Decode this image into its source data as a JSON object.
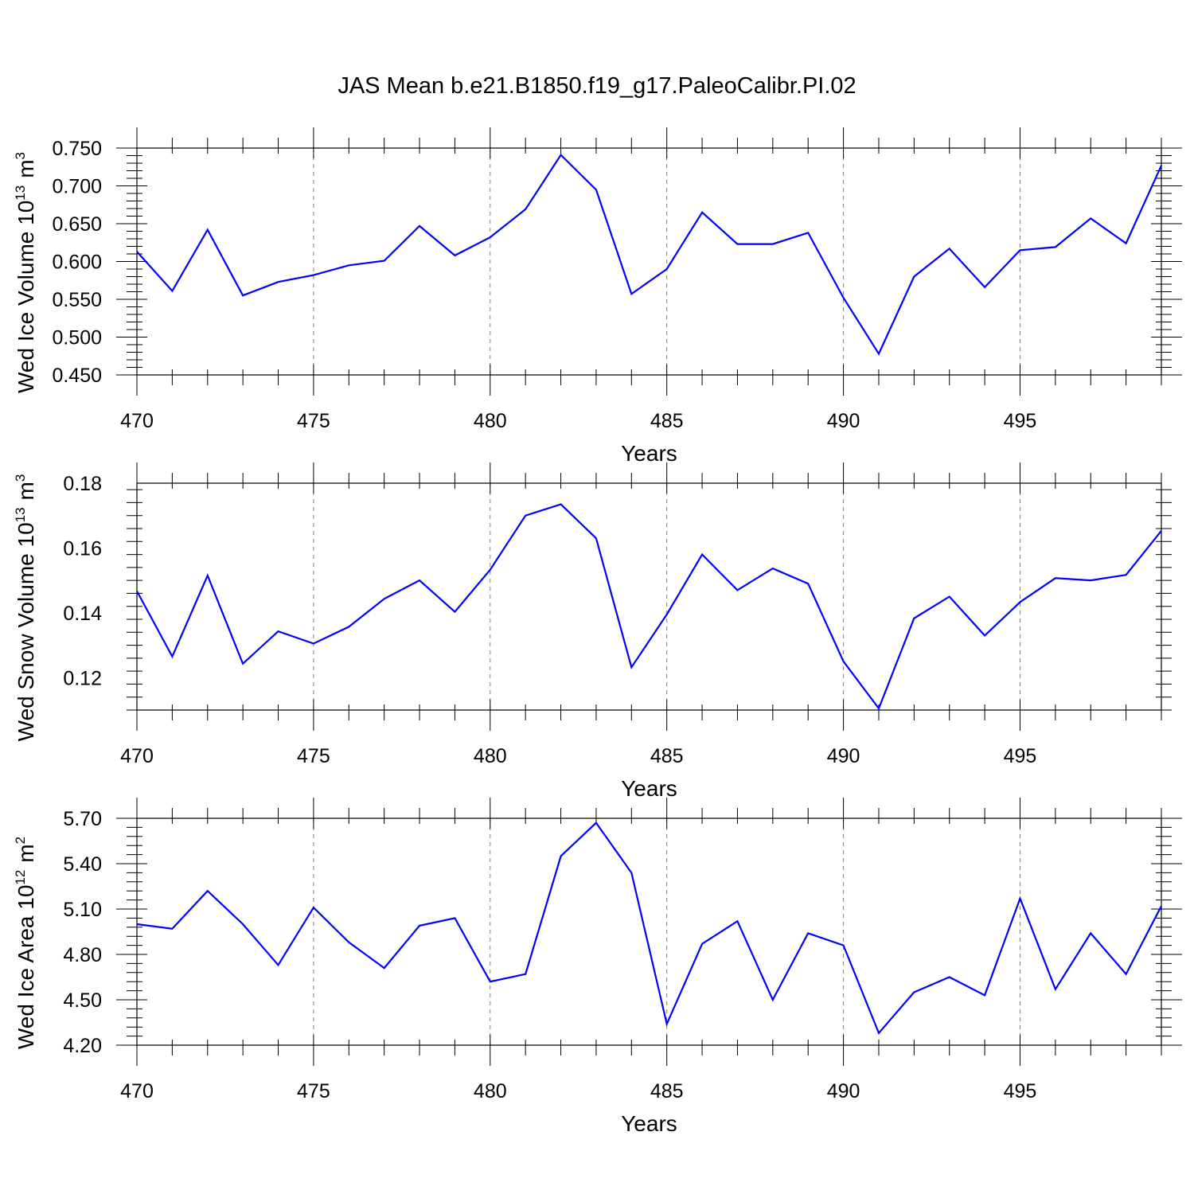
{
  "title": "JAS Mean b.e21.B1850.f19_g17.PaleoCalibr.PI.02",
  "colors": {
    "series": "#0000ff",
    "axis": "#000000",
    "grid": "#808080"
  },
  "chart_data": [
    {
      "type": "line",
      "id": "ice-volume",
      "ylabel_main": "Wed Ice Volume 10",
      "ylabel_exp": "13",
      "ylabel_unit": "m",
      "ylabel_unit_exp": "3",
      "xlabel": "Years",
      "xlim": [
        470,
        499
      ],
      "ylim": [
        0.45,
        0.75
      ],
      "xticks": [
        470,
        475,
        480,
        485,
        490,
        495
      ],
      "yticks": [
        "0.450",
        "0.500",
        "0.550",
        "0.600",
        "0.650",
        "0.700",
        "0.750"
      ],
      "grid": "dashed vertical at major x ticks",
      "series": [
        {
          "name": "Wed Ice Volume",
          "x": [
            470,
            471,
            472,
            473,
            474,
            475,
            476,
            477,
            478,
            479,
            480,
            481,
            482,
            483,
            484,
            485,
            486,
            487,
            488,
            489,
            490,
            491,
            492,
            493,
            494,
            495,
            496,
            497,
            498,
            499
          ],
          "values": [
            0.613,
            0.561,
            0.642,
            0.555,
            0.573,
            0.582,
            0.595,
            0.601,
            0.647,
            0.608,
            0.632,
            0.669,
            0.741,
            0.695,
            0.557,
            0.59,
            0.665,
            0.623,
            0.623,
            0.638,
            0.552,
            0.478,
            0.58,
            0.617,
            0.566,
            0.615,
            0.619,
            0.657,
            0.624,
            0.727
          ]
        }
      ]
    },
    {
      "type": "line",
      "id": "snow-volume",
      "ylabel_main": "Wed Snow Volume 10",
      "ylabel_exp": "13",
      "ylabel_unit": "m",
      "ylabel_unit_exp": "3",
      "xlabel": "Years",
      "xlim": [
        470,
        499
      ],
      "ylim": [
        0.11,
        0.18
      ],
      "xticks": [
        470,
        475,
        480,
        485,
        490,
        495
      ],
      "yticks": [
        "0.12",
        "0.14",
        "0.16",
        "0.18"
      ],
      "grid": "dashed vertical at major x ticks",
      "series": [
        {
          "name": "Wed Snow Volume",
          "x": [
            470,
            471,
            472,
            473,
            474,
            475,
            476,
            477,
            478,
            479,
            480,
            481,
            482,
            483,
            484,
            485,
            486,
            487,
            488,
            489,
            490,
            491,
            492,
            493,
            494,
            495,
            496,
            497,
            498,
            499
          ],
          "values": [
            0.1467,
            0.1265,
            0.1515,
            0.1243,
            0.1343,
            0.1305,
            0.1357,
            0.1443,
            0.15,
            0.1403,
            0.1533,
            0.17,
            0.1735,
            0.163,
            0.1232,
            0.1395,
            0.158,
            0.147,
            0.1537,
            0.149,
            0.125,
            0.1105,
            0.1383,
            0.145,
            0.133,
            0.1433,
            0.1507,
            0.15,
            0.1517,
            0.1653
          ]
        }
      ]
    },
    {
      "type": "line",
      "id": "ice-area",
      "ylabel_main": "Wed Ice Area 10",
      "ylabel_exp": "12",
      "ylabel_unit": "m",
      "ylabel_unit_exp": "2",
      "xlabel": "Years",
      "xlim": [
        470,
        499
      ],
      "ylim": [
        4.2,
        5.7
      ],
      "xticks": [
        470,
        475,
        480,
        485,
        490,
        495
      ],
      "yticks": [
        "4.20",
        "4.50",
        "4.80",
        "5.10",
        "5.40",
        "5.70"
      ],
      "grid": "dashed vertical at major x ticks",
      "series": [
        {
          "name": "Wed Ice Area",
          "x": [
            470,
            471,
            472,
            473,
            474,
            475,
            476,
            477,
            478,
            479,
            480,
            481,
            482,
            483,
            484,
            485,
            486,
            487,
            488,
            489,
            490,
            491,
            492,
            493,
            494,
            495,
            496,
            497,
            498,
            499
          ],
          "values": [
            5.0,
            4.97,
            5.22,
            5.0,
            4.73,
            5.11,
            4.88,
            4.71,
            4.99,
            5.04,
            4.62,
            4.67,
            5.45,
            5.67,
            5.34,
            4.34,
            4.87,
            5.02,
            4.5,
            4.94,
            4.86,
            4.28,
            4.55,
            4.65,
            4.53,
            5.17,
            4.57,
            4.94,
            4.67,
            5.12
          ]
        }
      ]
    }
  ]
}
